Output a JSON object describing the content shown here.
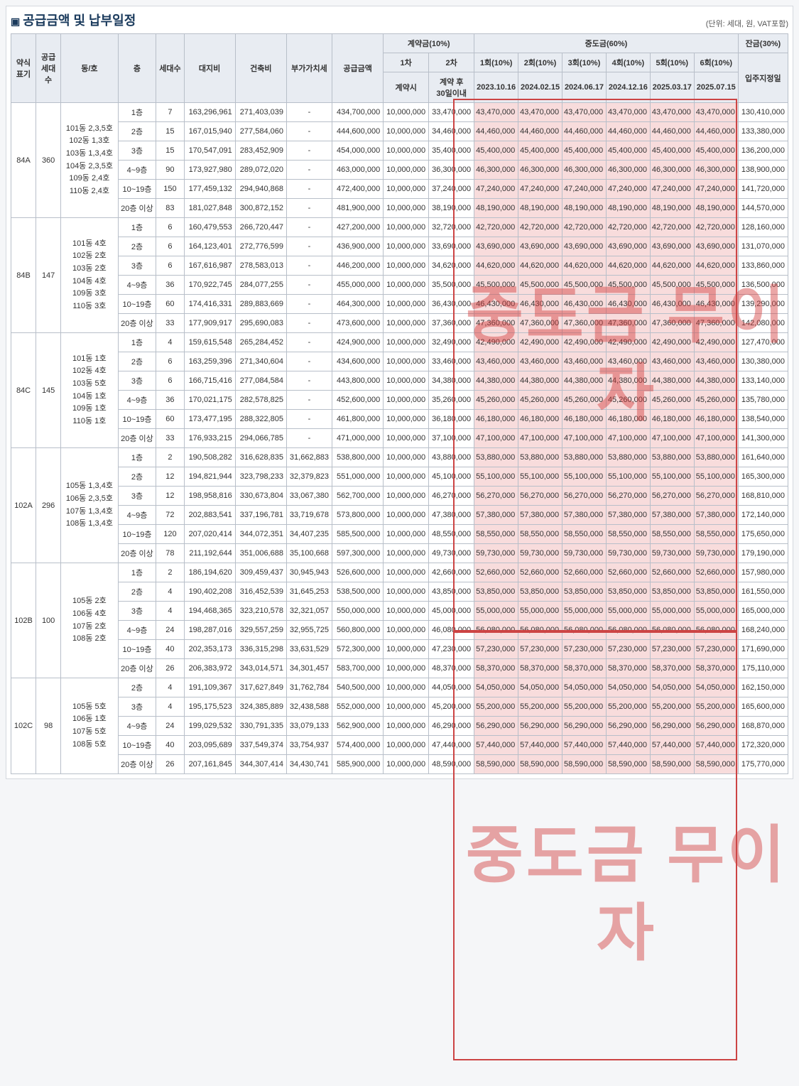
{
  "title": "공급금액 및 납부일정",
  "unit": "(단위: 세대, 원, VAT포함)",
  "hdr": {
    "type": "약식\n표기",
    "units": "공급\n세대수",
    "dongho": "동/호",
    "floor": "층",
    "households": "세대수",
    "land": "대지비",
    "build": "건축비",
    "vat": "부가가치세",
    "supply": "공급금액",
    "contract": "계약금(10%)",
    "c1": "1차",
    "c2": "2차",
    "c1s": "계약시",
    "c2s": "계약 후\n30일이내",
    "mid": "중도금(60%)",
    "m1": "1회(10%)",
    "m2": "2회(10%)",
    "m3": "3회(10%)",
    "m4": "4회(10%)",
    "m5": "5회(10%)",
    "m6": "6회(10%)",
    "d1": "2023.10.16",
    "d2": "2024.02.15",
    "d3": "2024.06.17",
    "d4": "2024.12.16",
    "d5": "2025.03.17",
    "d6": "2025.07.15",
    "bal": "잔금(30%)",
    "bals": "입주지정일"
  },
  "watermark1": "중도금\n무이자",
  "watermark2": "중도금\n무이자",
  "groups": [
    {
      "type": "84A",
      "units": "360",
      "dongho": "101동 2,3,5호\n102동 1,3호\n103동 1,3,4호\n104동 2,3,5호\n109동 2,4호\n110동 2,4호",
      "rows": [
        {
          "fl": "1층",
          "hh": "7",
          "land": "163,296,961",
          "build": "271,403,039",
          "vat": "-",
          "sup": "434,700,000",
          "c1": "10,000,000",
          "c2": "33,470,000",
          "m": "43,470,000",
          "bal": "130,410,000"
        },
        {
          "fl": "2층",
          "hh": "15",
          "land": "167,015,940",
          "build": "277,584,060",
          "vat": "-",
          "sup": "444,600,000",
          "c1": "10,000,000",
          "c2": "34,460,000",
          "m": "44,460,000",
          "bal": "133,380,000"
        },
        {
          "fl": "3층",
          "hh": "15",
          "land": "170,547,091",
          "build": "283,452,909",
          "vat": "-",
          "sup": "454,000,000",
          "c1": "10,000,000",
          "c2": "35,400,000",
          "m": "45,400,000",
          "bal": "136,200,000"
        },
        {
          "fl": "4~9층",
          "hh": "90",
          "land": "173,927,980",
          "build": "289,072,020",
          "vat": "-",
          "sup": "463,000,000",
          "c1": "10,000,000",
          "c2": "36,300,000",
          "m": "46,300,000",
          "bal": "138,900,000"
        },
        {
          "fl": "10~19층",
          "hh": "150",
          "land": "177,459,132",
          "build": "294,940,868",
          "vat": "-",
          "sup": "472,400,000",
          "c1": "10,000,000",
          "c2": "37,240,000",
          "m": "47,240,000",
          "bal": "141,720,000"
        },
        {
          "fl": "20층 이상",
          "hh": "83",
          "land": "181,027,848",
          "build": "300,872,152",
          "vat": "-",
          "sup": "481,900,000",
          "c1": "10,000,000",
          "c2": "38,190,000",
          "m": "48,190,000",
          "bal": "144,570,000"
        }
      ]
    },
    {
      "type": "84B",
      "units": "147",
      "dongho": "101동 4호\n102동 2호\n103동 2호\n104동 4호\n109동 3호\n110동 3호",
      "rows": [
        {
          "fl": "1층",
          "hh": "6",
          "land": "160,479,553",
          "build": "266,720,447",
          "vat": "-",
          "sup": "427,200,000",
          "c1": "10,000,000",
          "c2": "32,720,000",
          "m": "42,720,000",
          "bal": "128,160,000"
        },
        {
          "fl": "2층",
          "hh": "6",
          "land": "164,123,401",
          "build": "272,776,599",
          "vat": "-",
          "sup": "436,900,000",
          "c1": "10,000,000",
          "c2": "33,690,000",
          "m": "43,690,000",
          "bal": "131,070,000"
        },
        {
          "fl": "3층",
          "hh": "6",
          "land": "167,616,987",
          "build": "278,583,013",
          "vat": "-",
          "sup": "446,200,000",
          "c1": "10,000,000",
          "c2": "34,620,000",
          "m": "44,620,000",
          "bal": "133,860,000"
        },
        {
          "fl": "4~9층",
          "hh": "36",
          "land": "170,922,745",
          "build": "284,077,255",
          "vat": "-",
          "sup": "455,000,000",
          "c1": "10,000,000",
          "c2": "35,500,000",
          "m": "45,500,000",
          "bal": "136,500,000"
        },
        {
          "fl": "10~19층",
          "hh": "60",
          "land": "174,416,331",
          "build": "289,883,669",
          "vat": "-",
          "sup": "464,300,000",
          "c1": "10,000,000",
          "c2": "36,430,000",
          "m": "46,430,000",
          "bal": "139,290,000"
        },
        {
          "fl": "20층 이상",
          "hh": "33",
          "land": "177,909,917",
          "build": "295,690,083",
          "vat": "-",
          "sup": "473,600,000",
          "c1": "10,000,000",
          "c2": "37,360,000",
          "m": "47,360,000",
          "bal": "142,080,000"
        }
      ]
    },
    {
      "type": "84C",
      "units": "145",
      "dongho": "101동 1호\n102동 4호\n103동 5호\n104동 1호\n109동 1호\n110동 1호",
      "rows": [
        {
          "fl": "1층",
          "hh": "4",
          "land": "159,615,548",
          "build": "265,284,452",
          "vat": "-",
          "sup": "424,900,000",
          "c1": "10,000,000",
          "c2": "32,490,000",
          "m": "42,490,000",
          "bal": "127,470,000"
        },
        {
          "fl": "2층",
          "hh": "6",
          "land": "163,259,396",
          "build": "271,340,604",
          "vat": "-",
          "sup": "434,600,000",
          "c1": "10,000,000",
          "c2": "33,460,000",
          "m": "43,460,000",
          "bal": "130,380,000"
        },
        {
          "fl": "3층",
          "hh": "6",
          "land": "166,715,416",
          "build": "277,084,584",
          "vat": "-",
          "sup": "443,800,000",
          "c1": "10,000,000",
          "c2": "34,380,000",
          "m": "44,380,000",
          "bal": "133,140,000"
        },
        {
          "fl": "4~9층",
          "hh": "36",
          "land": "170,021,175",
          "build": "282,578,825",
          "vat": "-",
          "sup": "452,600,000",
          "c1": "10,000,000",
          "c2": "35,260,000",
          "m": "45,260,000",
          "bal": "135,780,000"
        },
        {
          "fl": "10~19층",
          "hh": "60",
          "land": "173,477,195",
          "build": "288,322,805",
          "vat": "-",
          "sup": "461,800,000",
          "c1": "10,000,000",
          "c2": "36,180,000",
          "m": "46,180,000",
          "bal": "138,540,000"
        },
        {
          "fl": "20층 이상",
          "hh": "33",
          "land": "176,933,215",
          "build": "294,066,785",
          "vat": "-",
          "sup": "471,000,000",
          "c1": "10,000,000",
          "c2": "37,100,000",
          "m": "47,100,000",
          "bal": "141,300,000"
        }
      ]
    },
    {
      "type": "102A",
      "units": "296",
      "dongho": "105동 1,3,4호\n106동 2,3,5호\n107동 1,3,4호\n108동 1,3,4호",
      "rows": [
        {
          "fl": "1층",
          "hh": "2",
          "land": "190,508,282",
          "build": "316,628,835",
          "vat": "31,662,883",
          "sup": "538,800,000",
          "c1": "10,000,000",
          "c2": "43,880,000",
          "m": "53,880,000",
          "bal": "161,640,000"
        },
        {
          "fl": "2층",
          "hh": "12",
          "land": "194,821,944",
          "build": "323,798,233",
          "vat": "32,379,823",
          "sup": "551,000,000",
          "c1": "10,000,000",
          "c2": "45,100,000",
          "m": "55,100,000",
          "bal": "165,300,000"
        },
        {
          "fl": "3층",
          "hh": "12",
          "land": "198,958,816",
          "build": "330,673,804",
          "vat": "33,067,380",
          "sup": "562,700,000",
          "c1": "10,000,000",
          "c2": "46,270,000",
          "m": "56,270,000",
          "bal": "168,810,000"
        },
        {
          "fl": "4~9층",
          "hh": "72",
          "land": "202,883,541",
          "build": "337,196,781",
          "vat": "33,719,678",
          "sup": "573,800,000",
          "c1": "10,000,000",
          "c2": "47,380,000",
          "m": "57,380,000",
          "bal": "172,140,000"
        },
        {
          "fl": "10~19층",
          "hh": "120",
          "land": "207,020,414",
          "build": "344,072,351",
          "vat": "34,407,235",
          "sup": "585,500,000",
          "c1": "10,000,000",
          "c2": "48,550,000",
          "m": "58,550,000",
          "bal": "175,650,000"
        },
        {
          "fl": "20층 이상",
          "hh": "78",
          "land": "211,192,644",
          "build": "351,006,688",
          "vat": "35,100,668",
          "sup": "597,300,000",
          "c1": "10,000,000",
          "c2": "49,730,000",
          "m": "59,730,000",
          "bal": "179,190,000"
        }
      ]
    },
    {
      "type": "102B",
      "units": "100",
      "dongho": "105동 2호\n106동 4호\n107동 2호\n108동 2호",
      "rows": [
        {
          "fl": "1층",
          "hh": "2",
          "land": "186,194,620",
          "build": "309,459,437",
          "vat": "30,945,943",
          "sup": "526,600,000",
          "c1": "10,000,000",
          "c2": "42,660,000",
          "m": "52,660,000",
          "bal": "157,980,000"
        },
        {
          "fl": "2층",
          "hh": "4",
          "land": "190,402,208",
          "build": "316,452,539",
          "vat": "31,645,253",
          "sup": "538,500,000",
          "c1": "10,000,000",
          "c2": "43,850,000",
          "m": "53,850,000",
          "bal": "161,550,000"
        },
        {
          "fl": "3층",
          "hh": "4",
          "land": "194,468,365",
          "build": "323,210,578",
          "vat": "32,321,057",
          "sup": "550,000,000",
          "c1": "10,000,000",
          "c2": "45,000,000",
          "m": "55,000,000",
          "bal": "165,000,000"
        },
        {
          "fl": "4~9층",
          "hh": "24",
          "land": "198,287,016",
          "build": "329,557,259",
          "vat": "32,955,725",
          "sup": "560,800,000",
          "c1": "10,000,000",
          "c2": "46,080,000",
          "m": "56,080,000",
          "bal": "168,240,000"
        },
        {
          "fl": "10~19층",
          "hh": "40",
          "land": "202,353,173",
          "build": "336,315,298",
          "vat": "33,631,529",
          "sup": "572,300,000",
          "c1": "10,000,000",
          "c2": "47,230,000",
          "m": "57,230,000",
          "bal": "171,690,000"
        },
        {
          "fl": "20층 이상",
          "hh": "26",
          "land": "206,383,972",
          "build": "343,014,571",
          "vat": "34,301,457",
          "sup": "583,700,000",
          "c1": "10,000,000",
          "c2": "48,370,000",
          "m": "58,370,000",
          "bal": "175,110,000"
        }
      ]
    },
    {
      "type": "102C",
      "units": "98",
      "dongho": "105동 5호\n106동 1호\n107동 5호\n108동 5호",
      "rowsCount": 5,
      "rows": [
        {
          "fl": "2층",
          "hh": "4",
          "land": "191,109,367",
          "build": "317,627,849",
          "vat": "31,762,784",
          "sup": "540,500,000",
          "c1": "10,000,000",
          "c2": "44,050,000",
          "m": "54,050,000",
          "bal": "162,150,000"
        },
        {
          "fl": "3층",
          "hh": "4",
          "land": "195,175,523",
          "build": "324,385,889",
          "vat": "32,438,588",
          "sup": "552,000,000",
          "c1": "10,000,000",
          "c2": "45,200,000",
          "m": "55,200,000",
          "bal": "165,600,000"
        },
        {
          "fl": "4~9층",
          "hh": "24",
          "land": "199,029,532",
          "build": "330,791,335",
          "vat": "33,079,133",
          "sup": "562,900,000",
          "c1": "10,000,000",
          "c2": "46,290,000",
          "m": "56,290,000",
          "bal": "168,870,000"
        },
        {
          "fl": "10~19층",
          "hh": "40",
          "land": "203,095,689",
          "build": "337,549,374",
          "vat": "33,754,937",
          "sup": "574,400,000",
          "c1": "10,000,000",
          "c2": "47,440,000",
          "m": "57,440,000",
          "bal": "172,320,000"
        },
        {
          "fl": "20층 이상",
          "hh": "26",
          "land": "207,161,845",
          "build": "344,307,414",
          "vat": "34,430,741",
          "sup": "585,900,000",
          "c1": "10,000,000",
          "c2": "48,590,000",
          "m": "58,590,000",
          "bal": "175,770,000"
        }
      ]
    }
  ]
}
